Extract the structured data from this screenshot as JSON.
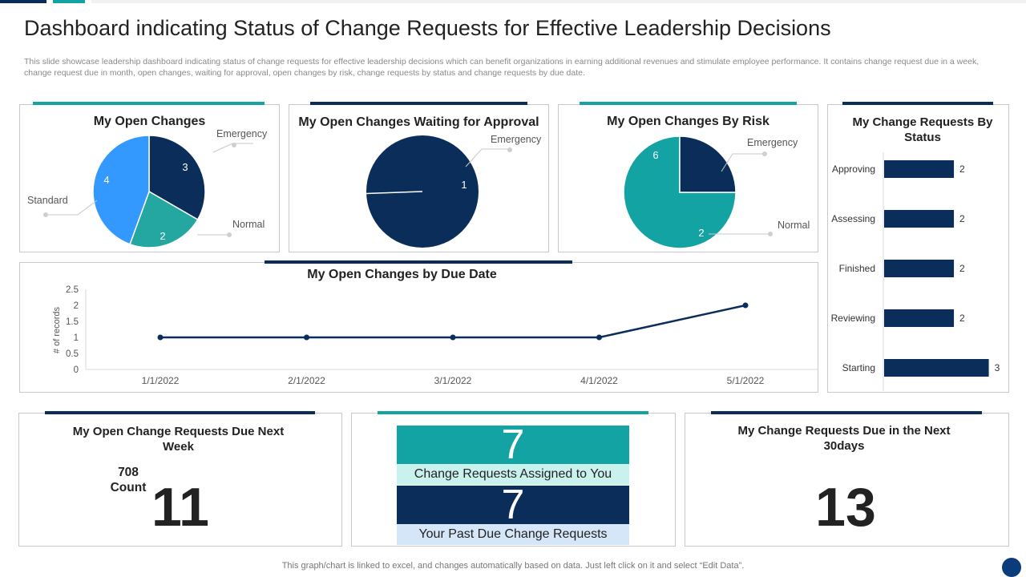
{
  "title": "Dashboard indicating Status of Change Requests for Effective Leadership Decisions",
  "description": "This slide showcase leadership dashboard indicating status of change requests for effective leadership decisions which can benefit organizations in earning additional revenues and stimulate employee performance. It contains change request due in a week, change request due in month, open changes, waiting for approval, open changes by risk, change requests by status and change requests by due date.",
  "colors": {
    "navy": "#0b2d5a",
    "teal": "#14a3a3",
    "blue": "#3399ff",
    "midteal": "#23a7a0"
  },
  "footer": "This graph/chart is linked to excel,  and changes automatically based on data. Just left click on it and select “Edit Data”.",
  "chart_data": [
    {
      "id": "open_changes",
      "type": "pie",
      "title": "My Open Changes",
      "slices": [
        {
          "label": "Emergency",
          "value": 3,
          "color": "#0b2d5a"
        },
        {
          "label": "Normal",
          "value": 2,
          "color": "#23a7a0"
        },
        {
          "label": "Standard",
          "value": 4,
          "color": "#3399ff"
        }
      ]
    },
    {
      "id": "waiting_approval",
      "type": "pie",
      "title": "My Open Changes Waiting for Approval",
      "slices": [
        {
          "label": "Emergency",
          "value": 1,
          "color": "#0b2d5a"
        }
      ]
    },
    {
      "id": "by_risk",
      "type": "pie",
      "title": "My Open Changes By Risk",
      "slices": [
        {
          "label": "Emergency",
          "value": 6,
          "color": "#14a3a3"
        },
        {
          "label": "Normal",
          "value": 2,
          "color": "#0b2d5a"
        }
      ]
    },
    {
      "id": "by_due_date",
      "type": "line",
      "title": "My Open Changes by Due Date",
      "ylabel": "# of records",
      "xlabel": "",
      "categories": [
        "1/1/2022",
        "2/1/2022",
        "3/1/2022",
        "4/1/2022",
        "5/1/2022"
      ],
      "values": [
        1,
        1,
        1,
        1,
        2
      ],
      "ylim": [
        0,
        2.5
      ],
      "yticks": [
        "0",
        "0.5",
        "1",
        "1.5",
        "2",
        "2.5"
      ],
      "yticks_values": [
        0,
        0.5,
        1,
        1.5,
        2,
        2.5
      ],
      "grid": false
    },
    {
      "id": "by_status",
      "type": "bar",
      "orientation": "horizontal",
      "title": "My Change Requests By Status",
      "categories": [
        "Approving",
        "Assessing",
        "Finished",
        "Reviewing",
        "Starting"
      ],
      "values": [
        2,
        2,
        2,
        2,
        3
      ],
      "xlim": [
        0,
        3.4
      ]
    }
  ],
  "kpi_week": {
    "title": "My Open Change Requests Due Next Week",
    "count_value": "708",
    "count_label": "Count",
    "value": "11"
  },
  "kpi_tiles": [
    {
      "value": "7",
      "label": "Change Requests Assigned to You"
    },
    {
      "value": "7",
      "label": "Your Past Due Change Requests"
    }
  ],
  "kpi_month": {
    "title": "My Change Requests Due in the Next 30days",
    "value": "13"
  }
}
